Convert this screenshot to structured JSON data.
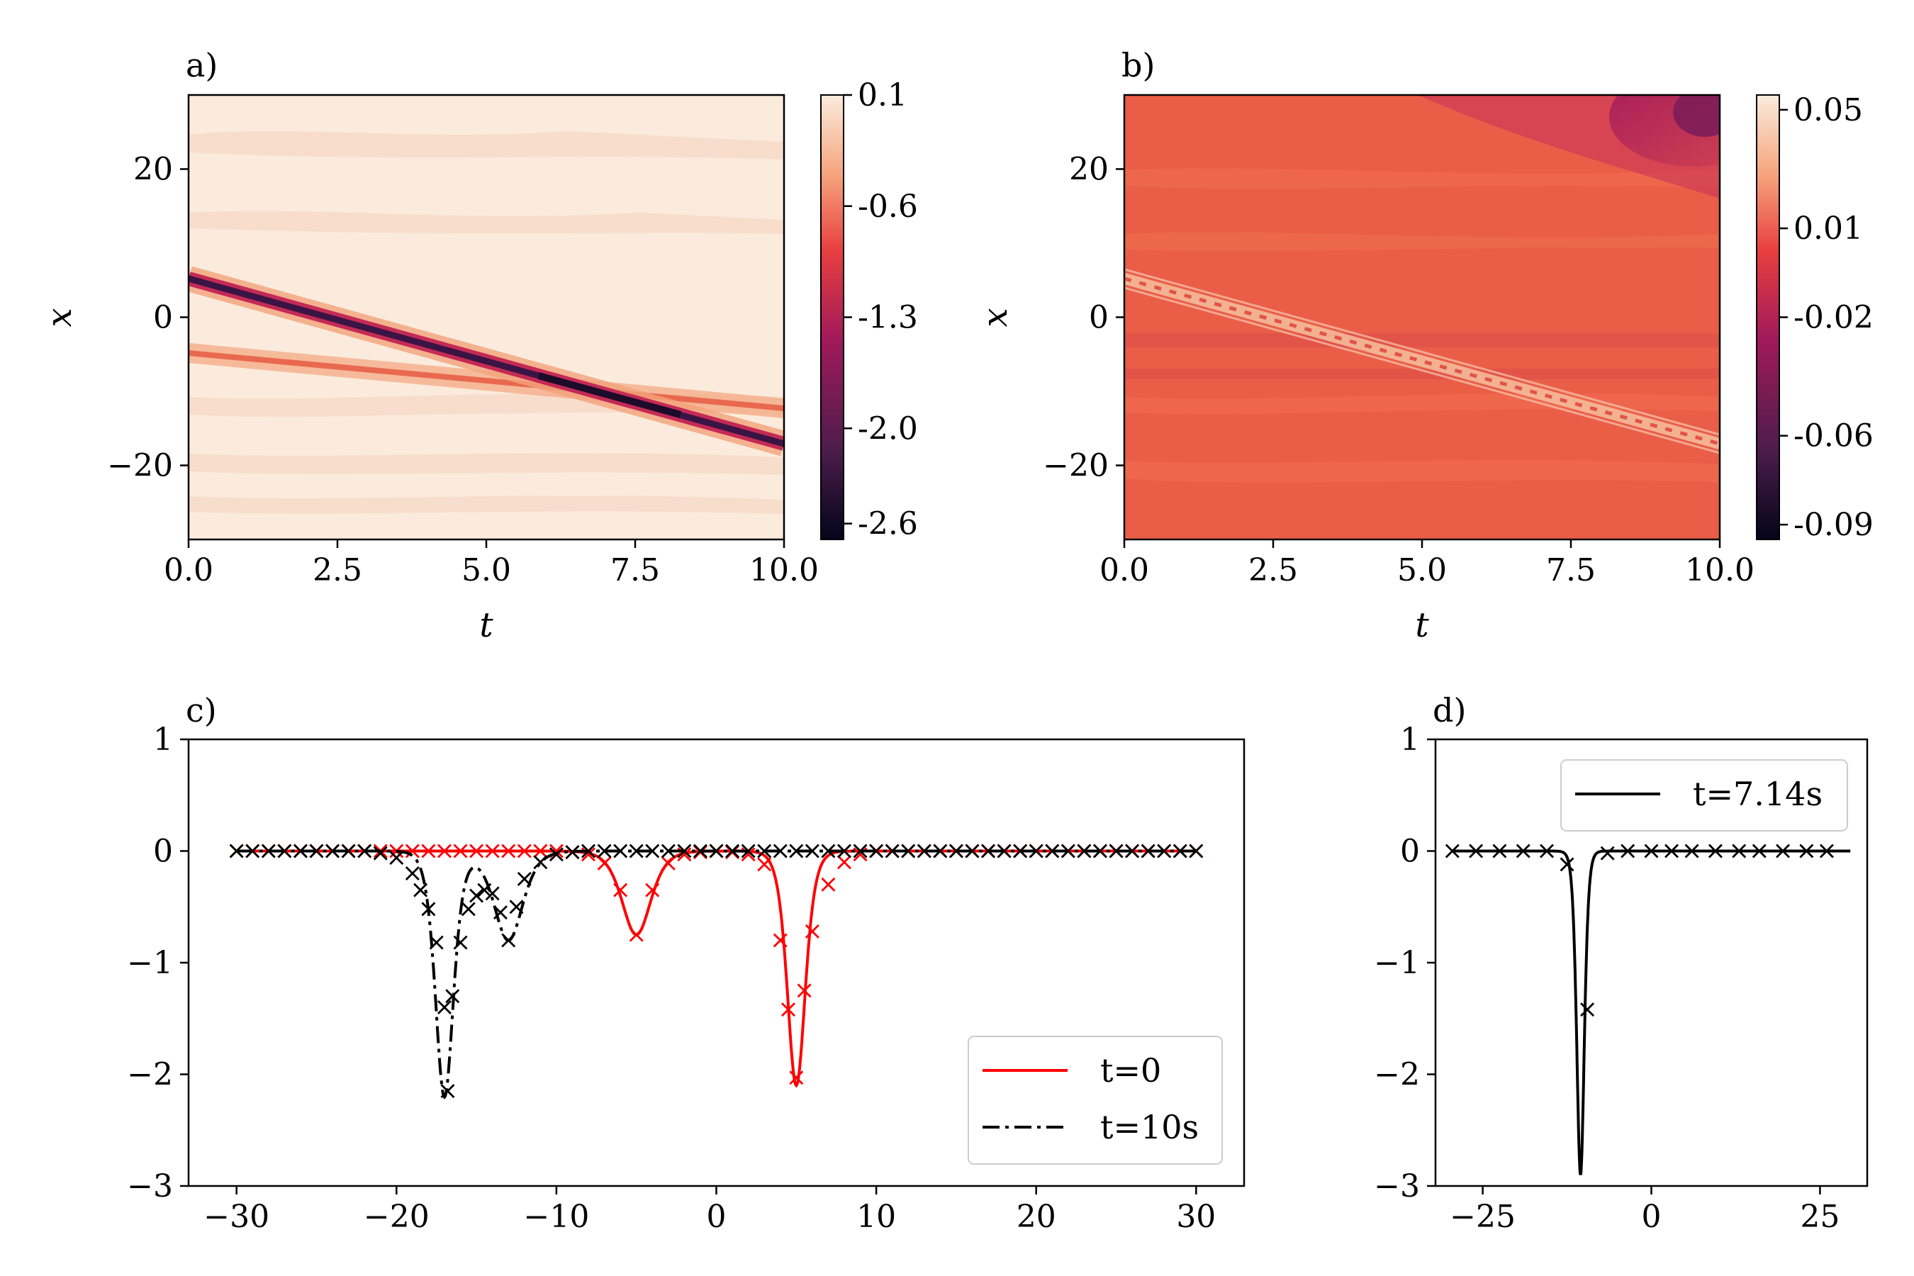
{
  "chart_data": [
    {
      "panel": "a)",
      "type": "heatmap",
      "xlabel": "t",
      "ylabel": "x",
      "xlim": [
        0,
        10
      ],
      "ylim": [
        -30,
        30
      ],
      "xticks": [
        "0.0",
        "2.5",
        "5.0",
        "7.5",
        "10.0"
      ],
      "yticks": [
        "20",
        "0",
        "−20"
      ],
      "colorbar_ticks": [
        "0.1",
        "-0.6",
        "-1.3",
        "-2.0",
        "-2.6"
      ],
      "colorbar_range": [
        -2.7,
        0.1
      ],
      "features": [
        {
          "name": "main soliton",
          "x_start": 5,
          "x_end": -17,
          "t_start": 0,
          "t_end": 10,
          "min_value": -2.6
        },
        {
          "name": "secondary soliton",
          "x_start": -5,
          "x_end": -13,
          "t_start": 0,
          "t_end": 10,
          "min_value": -0.8
        }
      ]
    },
    {
      "panel": "b)",
      "type": "heatmap",
      "xlabel": "t",
      "ylabel": "x",
      "xlim": [
        0,
        10
      ],
      "ylim": [
        -30,
        30
      ],
      "xticks": [
        "0.0",
        "2.5",
        "5.0",
        "7.5",
        "10.0"
      ],
      "yticks": [
        "20",
        "0",
        "−20"
      ],
      "colorbar_ticks": [
        "0.05",
        "0.01",
        "-0.02",
        "-0.06",
        "-0.09"
      ],
      "colorbar_range": [
        -0.095,
        0.055
      ]
    },
    {
      "panel": "c)",
      "type": "line",
      "xlim": [
        -33,
        33
      ],
      "ylim": [
        -3,
        1
      ],
      "xticks": [
        "−30",
        "−20",
        "−10",
        "0",
        "10",
        "20",
        "30"
      ],
      "yticks": [
        "1",
        "0",
        "−1",
        "−2",
        "−3"
      ],
      "legend": [
        "t=0",
        "t=10s"
      ],
      "legend_position": "lower-right",
      "series": [
        {
          "name": "t=0",
          "color": "#ff0000",
          "style": "solid",
          "marker": "x",
          "components": [
            {
              "center": 5,
              "amplitude": -2.1
            },
            {
              "center": -5,
              "amplitude": -0.75
            }
          ]
        },
        {
          "name": "t=10s",
          "color": "#000000",
          "style": "dashdot",
          "marker": "x",
          "components": [
            {
              "center": -17,
              "amplitude": -2.2
            },
            {
              "center": -13,
              "amplitude": -0.8
            }
          ]
        }
      ],
      "markers_t0": [
        [
          -30,
          0
        ],
        [
          -29,
          0
        ],
        [
          -28,
          0
        ],
        [
          -27,
          0
        ],
        [
          -26,
          0
        ],
        [
          -25,
          0
        ],
        [
          -24,
          0
        ],
        [
          -23,
          0
        ],
        [
          -22,
          0
        ],
        [
          -21,
          0
        ],
        [
          -20,
          0
        ],
        [
          -19,
          0
        ],
        [
          -18,
          0
        ],
        [
          -17,
          0
        ],
        [
          -16,
          0
        ],
        [
          -15,
          0
        ],
        [
          -14,
          0
        ],
        [
          -13,
          0
        ],
        [
          -12,
          0
        ],
        [
          -11,
          0
        ],
        [
          -10,
          0
        ],
        [
          -9,
          -0.01
        ],
        [
          -8,
          -0.03
        ],
        [
          -7,
          -0.11
        ],
        [
          -6,
          -0.35
        ],
        [
          -5,
          -0.75
        ],
        [
          -4,
          -0.35
        ],
        [
          -3,
          -0.11
        ],
        [
          -2,
          -0.03
        ],
        [
          -1,
          -0.01
        ],
        [
          0,
          0
        ],
        [
          1,
          -0.01
        ],
        [
          2,
          -0.03
        ],
        [
          3,
          -0.12
        ],
        [
          4,
          -0.8
        ],
        [
          4.5,
          -1.42
        ],
        [
          5,
          -2.03
        ],
        [
          5.5,
          -1.25
        ],
        [
          6,
          -0.72
        ],
        [
          7,
          -0.3
        ],
        [
          8,
          -0.1
        ],
        [
          9,
          -0.03
        ],
        [
          10,
          0
        ],
        [
          11,
          0
        ],
        [
          12,
          0
        ],
        [
          13,
          0
        ],
        [
          14,
          0
        ],
        [
          15,
          0
        ],
        [
          16,
          0
        ],
        [
          17,
          0
        ],
        [
          18,
          0
        ],
        [
          19,
          0
        ],
        [
          20,
          0
        ],
        [
          21,
          0
        ],
        [
          22,
          0
        ],
        [
          23,
          0
        ],
        [
          24,
          0
        ],
        [
          25,
          0
        ],
        [
          26,
          0
        ],
        [
          27,
          0
        ],
        [
          28,
          0
        ],
        [
          29,
          0
        ],
        [
          30,
          0
        ]
      ],
      "markers_t10": [
        [
          -30,
          0
        ],
        [
          -29,
          0
        ],
        [
          -28,
          0
        ],
        [
          -27,
          0
        ],
        [
          -26,
          0
        ],
        [
          -25,
          0
        ],
        [
          -24,
          0
        ],
        [
          -23,
          0
        ],
        [
          -22,
          0
        ],
        [
          -21,
          -0.02
        ],
        [
          -20,
          -0.06
        ],
        [
          -19,
          -0.2
        ],
        [
          -18.5,
          -0.35
        ],
        [
          -18,
          -0.52
        ],
        [
          -17.5,
          -0.82
        ],
        [
          -17,
          -1.4
        ],
        [
          -16.8,
          -2.15
        ],
        [
          -16.5,
          -1.3
        ],
        [
          -16,
          -0.82
        ],
        [
          -15.5,
          -0.52
        ],
        [
          -15,
          -0.4
        ],
        [
          -14.5,
          -0.35
        ],
        [
          -14,
          -0.38
        ],
        [
          -13.5,
          -0.55
        ],
        [
          -13,
          -0.8
        ],
        [
          -12.5,
          -0.5
        ],
        [
          -12,
          -0.25
        ],
        [
          -11,
          -0.1
        ],
        [
          -10,
          -0.03
        ],
        [
          -9,
          -0.01
        ],
        [
          -8,
          0
        ],
        [
          -7,
          0
        ],
        [
          -6,
          0
        ],
        [
          -5,
          0
        ],
        [
          -4,
          0
        ],
        [
          -3,
          0
        ],
        [
          -2,
          0
        ],
        [
          -1,
          0
        ],
        [
          0,
          0
        ],
        [
          1,
          0
        ],
        [
          2,
          0
        ],
        [
          3,
          0
        ],
        [
          4,
          0
        ],
        [
          5,
          0
        ],
        [
          6,
          0
        ],
        [
          7,
          0
        ],
        [
          8,
          0
        ],
        [
          9,
          0
        ],
        [
          10,
          0
        ],
        [
          11,
          0
        ],
        [
          12,
          0
        ],
        [
          13,
          0
        ],
        [
          14,
          0
        ],
        [
          15,
          0
        ],
        [
          16,
          0
        ],
        [
          17,
          0
        ],
        [
          18,
          0
        ],
        [
          19,
          0
        ],
        [
          20,
          0
        ],
        [
          21,
          0
        ],
        [
          22,
          0
        ],
        [
          23,
          0
        ],
        [
          24,
          0
        ],
        [
          25,
          0
        ],
        [
          26,
          0
        ],
        [
          27,
          0
        ],
        [
          28,
          0
        ],
        [
          29,
          0
        ],
        [
          30,
          0
        ]
      ]
    },
    {
      "panel": "d)",
      "type": "line",
      "xlim": [
        -32,
        32
      ],
      "ylim": [
        -3,
        1
      ],
      "xticks": [
        "−25",
        "0",
        "25"
      ],
      "yticks": [
        "1",
        "0",
        "−1",
        "−2",
        "−3"
      ],
      "legend": [
        "t=7.14s"
      ],
      "legend_position": "top-right",
      "series": [
        {
          "name": "t=7.14s",
          "color": "#000000",
          "style": "solid",
          "marker": "x",
          "components": [
            {
              "center": -10.5,
              "amplitude": -2.9
            }
          ]
        }
      ],
      "markers": [
        [
          -29.5,
          0
        ],
        [
          -26,
          0
        ],
        [
          -22.5,
          0
        ],
        [
          -19,
          0
        ],
        [
          -15.5,
          0
        ],
        [
          -12.5,
          -0.12
        ],
        [
          -9.5,
          -1.42
        ],
        [
          -6.5,
          -0.02
        ],
        [
          -3.5,
          0
        ],
        [
          0,
          0
        ],
        [
          3,
          0
        ],
        [
          6,
          0
        ],
        [
          9.5,
          0
        ],
        [
          13,
          0
        ],
        [
          16,
          0
        ],
        [
          19.5,
          0
        ],
        [
          23,
          0
        ],
        [
          26,
          0
        ]
      ]
    }
  ]
}
